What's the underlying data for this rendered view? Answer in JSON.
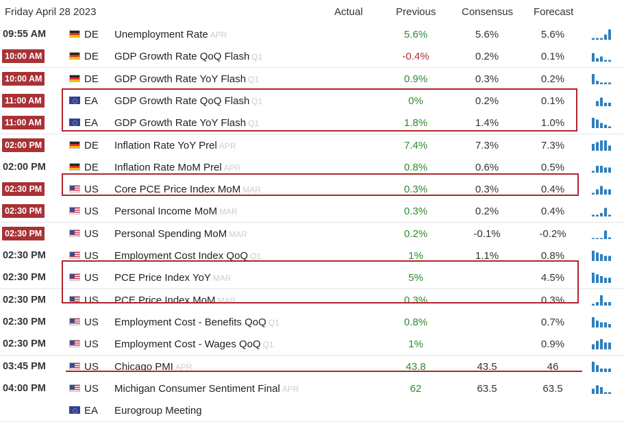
{
  "header": {
    "date": "Friday April 28 2023",
    "actual_label": "Actual",
    "previous_label": "Previous",
    "consensus_label": "Consensus",
    "forecast_label": "Forecast"
  },
  "colors": {
    "highlight_border": "#b0242b",
    "red_time_badge": "#a83236",
    "positive_value": "#2d8a2d",
    "negative_value": "#b32d2d",
    "sparkline": "#2e7fbe"
  },
  "rows": [
    {
      "time": "09:55 AM",
      "time_badge": false,
      "country": "DE",
      "flag": "germany-flag-icon",
      "event": "Unemployment Rate",
      "ref": "APR",
      "actual": "",
      "previous": "5.6%",
      "previous_color": "green",
      "consensus": "5.6%",
      "forecast": "5.6%",
      "spark": [
        1,
        1,
        1,
        3,
        6
      ]
    },
    {
      "time": "10:00 AM",
      "time_badge": true,
      "country": "DE",
      "flag": "germany-flag-icon",
      "event": "GDP Growth Rate QoQ Flash",
      "ref": "Q1",
      "actual": "",
      "previous": "-0.4%",
      "previous_color": "red",
      "consensus": "0.2%",
      "forecast": "0.1%",
      "spark": [
        5,
        2,
        3,
        1,
        1
      ]
    },
    {
      "time": "10:00 AM",
      "time_badge": true,
      "country": "DE",
      "flag": "germany-flag-icon",
      "event": "GDP Growth Rate YoY Flash",
      "ref": "Q1",
      "actual": "",
      "previous": "0.9%",
      "previous_color": "green",
      "consensus": "0.3%",
      "forecast": "0.2%",
      "spark": [
        6,
        2,
        1,
        1,
        1
      ]
    },
    {
      "time": "11:00 AM",
      "time_badge": true,
      "country": "EA",
      "flag": "euro-area-flag-icon",
      "event": "GDP Growth Rate QoQ Flash",
      "ref": "Q1",
      "actual": "",
      "previous": "0%",
      "previous_color": "green",
      "consensus": "0.2%",
      "forecast": "0.1%",
      "spark": [
        3,
        5,
        2,
        2
      ]
    },
    {
      "time": "11:00 AM",
      "time_badge": true,
      "country": "EA",
      "flag": "euro-area-flag-icon",
      "event": "GDP Growth Rate YoY Flash",
      "ref": "Q1",
      "actual": "",
      "previous": "1.8%",
      "previous_color": "green",
      "consensus": "1.4%",
      "forecast": "1.0%",
      "spark": [
        6,
        5,
        3,
        2,
        1
      ]
    },
    {
      "time": "02:00 PM",
      "time_badge": true,
      "country": "DE",
      "flag": "germany-flag-icon",
      "event": "Inflation Rate YoY Prel",
      "ref": "APR",
      "actual": "",
      "previous": "7.4%",
      "previous_color": "green",
      "consensus": "7.3%",
      "forecast": "7.3%",
      "spark": [
        4,
        5,
        6,
        6,
        3
      ]
    },
    {
      "time": "02:00 PM",
      "time_badge": false,
      "country": "DE",
      "flag": "germany-flag-icon",
      "event": "Inflation Rate MoM Prel",
      "ref": "APR",
      "actual": "",
      "previous": "0.8%",
      "previous_color": "green",
      "consensus": "0.6%",
      "forecast": "0.5%",
      "spark": [
        1,
        4,
        4,
        3,
        3
      ]
    },
    {
      "time": "02:30 PM",
      "time_badge": true,
      "country": "US",
      "flag": "us-flag-icon",
      "event": "Core PCE Price Index MoM",
      "ref": "MAR",
      "actual": "",
      "previous": "0.3%",
      "previous_color": "green",
      "consensus": "0.3%",
      "forecast": "0.4%",
      "spark": [
        1,
        3,
        5,
        3,
        3
      ]
    },
    {
      "time": "02:30 PM",
      "time_badge": true,
      "country": "US",
      "flag": "us-flag-icon",
      "event": "Personal Income MoM",
      "ref": "MAR",
      "actual": "",
      "previous": "0.3%",
      "previous_color": "green",
      "consensus": "0.2%",
      "forecast": "0.4%",
      "spark": [
        1,
        1,
        2,
        5,
        1
      ]
    },
    {
      "time": "02:30 PM",
      "time_badge": true,
      "country": "US",
      "flag": "us-flag-icon",
      "event": "Personal Spending MoM",
      "ref": "MAR",
      "actual": "",
      "previous": "0.2%",
      "previous_color": "green",
      "consensus": "-0.1%",
      "forecast": "-0.2%",
      "spark": [
        0,
        0,
        0,
        5,
        1
      ]
    },
    {
      "time": "02:30 PM",
      "time_badge": false,
      "country": "US",
      "flag": "us-flag-icon",
      "event": "Employment Cost Index QoQ",
      "ref": "Q1",
      "actual": "",
      "previous": "1%",
      "previous_color": "green",
      "consensus": "1.1%",
      "forecast": "0.8%",
      "spark": [
        6,
        5,
        4,
        3,
        3
      ]
    },
    {
      "time": "02:30 PM",
      "time_badge": false,
      "country": "US",
      "flag": "us-flag-icon",
      "event": "PCE Price Index YoY",
      "ref": "MAR",
      "actual": "",
      "previous": "5%",
      "previous_color": "green",
      "consensus": "",
      "forecast": "4.5%",
      "spark": [
        6,
        5,
        4,
        3,
        3
      ]
    },
    {
      "time": "02:30 PM",
      "time_badge": false,
      "country": "US",
      "flag": "us-flag-icon",
      "event": "PCE Price Index MoM",
      "ref": "MAR",
      "actual": "",
      "previous": "0.3%",
      "previous_color": "green",
      "consensus": "",
      "forecast": "0.3%",
      "spark": [
        1,
        2,
        6,
        2,
        2
      ]
    },
    {
      "time": "02:30 PM",
      "time_badge": false,
      "country": "US",
      "flag": "us-flag-icon",
      "event": "Employment Cost - Benefits QoQ",
      "ref": "Q1",
      "actual": "",
      "previous": "0.8%",
      "previous_color": "green",
      "consensus": "",
      "forecast": "0.7%",
      "spark": [
        6,
        4,
        3,
        3,
        2
      ]
    },
    {
      "time": "02:30 PM",
      "time_badge": false,
      "country": "US",
      "flag": "us-flag-icon",
      "event": "Employment Cost - Wages QoQ",
      "ref": "Q1",
      "actual": "",
      "previous": "1%",
      "previous_color": "green",
      "consensus": "",
      "forecast": "0.9%",
      "spark": [
        3,
        5,
        6,
        4,
        4
      ]
    },
    {
      "time": "03:45 PM",
      "time_badge": false,
      "country": "US",
      "flag": "us-flag-icon",
      "event": "Chicago PMI",
      "ref": "APR",
      "actual": "",
      "previous": "43.8",
      "previous_color": "green",
      "consensus": "43.5",
      "forecast": "46",
      "spark": [
        6,
        4,
        2,
        2,
        2
      ]
    },
    {
      "time": "04:00 PM",
      "time_badge": false,
      "country": "US",
      "flag": "us-flag-icon",
      "event": "Michigan Consumer Sentiment Final",
      "ref": "APR",
      "actual": "",
      "previous": "62",
      "previous_color": "green",
      "consensus": "63.5",
      "forecast": "63.5",
      "spark": [
        3,
        5,
        4,
        1,
        1
      ]
    },
    {
      "time": "",
      "time_badge": false,
      "country": "EA",
      "flag": "euro-area-flag-icon",
      "event": "Eurogroup Meeting",
      "ref": "",
      "actual": "",
      "previous": "",
      "previous_color": "green",
      "consensus": "",
      "forecast": "",
      "spark": []
    }
  ]
}
